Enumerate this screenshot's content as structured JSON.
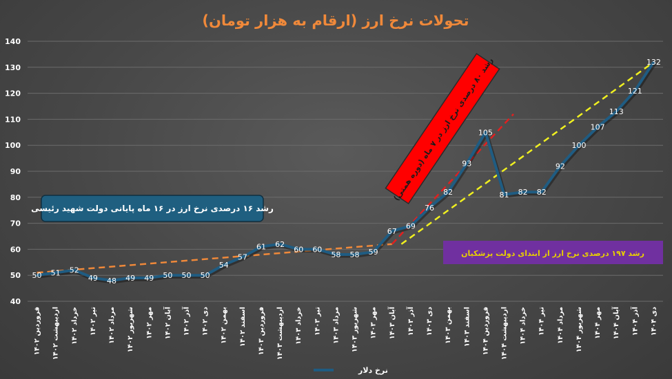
{
  "chart_data": {
    "type": "line",
    "title": "تحولات نرخ ارز (ارقام به هزار تومان)",
    "xlabel": "",
    "ylabel": "",
    "ylim": [
      40,
      140
    ],
    "yticks": [
      40,
      50,
      60,
      70,
      80,
      90,
      100,
      110,
      120,
      130,
      140
    ],
    "grid": true,
    "legend_position": "bottom",
    "categories": [
      "فروردین ۱۴۰۲",
      "اردیبهشت ۱۴۰۲",
      "خرداد ۱۴۰۲",
      "تیر ۱۴۰۲",
      "مرداد ۱۴۰۲",
      "شهریور ۱۴۰۲",
      "مهر ۱۴۰۲",
      "آبان ۱۴۰۲",
      "آذر ۱۴۰۲",
      "دی ۱۴۰۲",
      "بهمن ۱۴۰۲",
      "اسفند ۱۴۰۲",
      "فروردین ۱۴۰۳",
      "اردیبهشت ۱۴۰۳",
      "خرداد ۱۴۰۳",
      "تیر ۱۴۰۳",
      "مرداد ۱۴۰۳",
      "شهریور ۱۴۰۳",
      "مهر ۱۴۰۳",
      "آبان ۱۴۰۳",
      "آذر ۱۴۰۳",
      "دی ۱۴۰۳",
      "بهمن ۱۴۰۳",
      "اسفند ۱۴۰۳",
      "فروردین ۱۴۰۴",
      "اردیبهشت ۱۴۰۴",
      "خرداد ۱۴۰۴",
      "تیر ۱۴۰۴",
      "مرداد ۱۴۰۴",
      "شهریور ۱۴۰۴",
      "مهر ۱۴۰۴",
      "آبان ۱۴۰۴",
      "آذر ۱۴۰۴",
      "دی ۱۴۰۴"
    ],
    "series": [
      {
        "name": "نرخ دلار",
        "color": "#1f5c82",
        "values": [
          50,
          51,
          52,
          49,
          48,
          49,
          49,
          50,
          50,
          50,
          54,
          57,
          61,
          62,
          60,
          60,
          58,
          58,
          59,
          67,
          69,
          76,
          82,
          93,
          105,
          81,
          82,
          82,
          92,
          100,
          107,
          113,
          121,
          132
        ]
      }
    ],
    "trendlines": [
      {
        "id": "orange",
        "color": "#f0893a",
        "from": [
          0,
          51
        ],
        "to": [
          19,
          62
        ]
      },
      {
        "id": "red",
        "color": "#e02020",
        "from": [
          19,
          62
        ],
        "to": [
          25.5,
          112
        ]
      },
      {
        "id": "yellow",
        "color": "#f0f020",
        "from": [
          19.5,
          62
        ],
        "to": [
          33,
          132
        ]
      }
    ],
    "annotations": [
      {
        "id": "blue",
        "text": "رشد ۱۶ درصدی نرخ ارز در ۱۶ ماه پایانی دولت شهید رئیسی",
        "bg": "#1f5f80",
        "fg": "#ffffff"
      },
      {
        "id": "red",
        "text": "رشد ۸۰ درصدی نرخ ارز در ۷ ماه (دوره همتی)",
        "bg": "#ff0000",
        "fg": "#1a1a1a"
      },
      {
        "id": "purple",
        "text": "رشد ۱۹۷ درصدی نرخ ارز از ابتدای دولت پزشکیان",
        "bg": "#7030a0",
        "fg": "#e8d000"
      }
    ]
  }
}
